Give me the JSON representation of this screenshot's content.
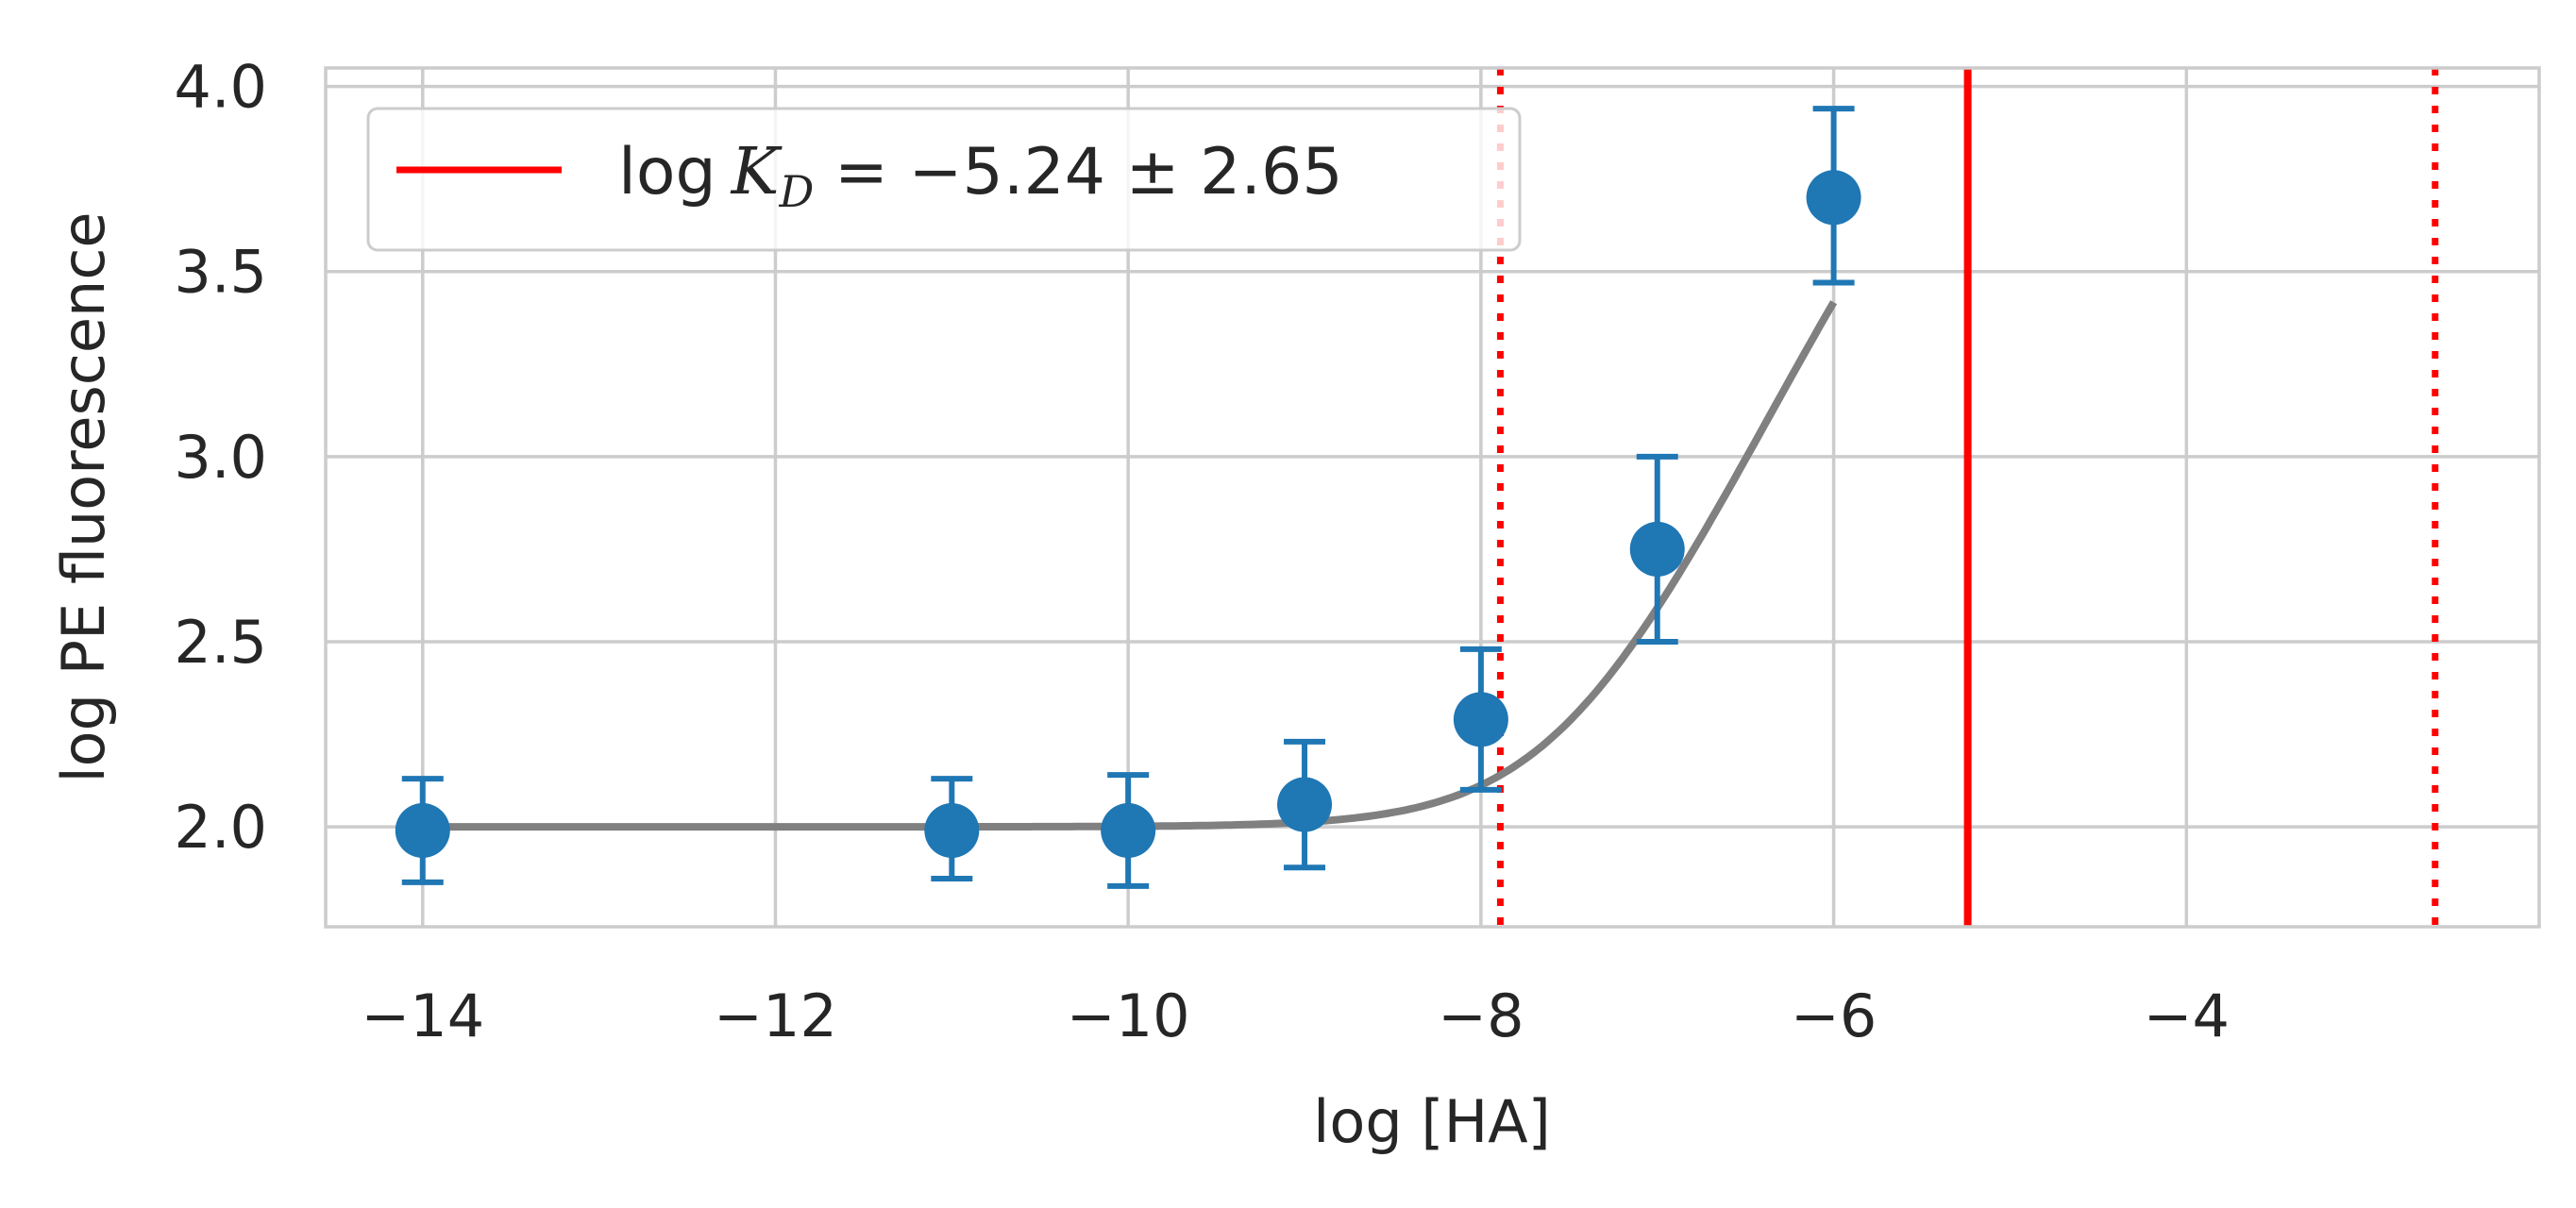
{
  "chart_data": {
    "type": "scatter",
    "xlabel": "log [HA]",
    "ylabel": "log PE fluorescence",
    "xlim": [
      -14.55,
      -2.0
    ],
    "ylim": [
      1.73,
      4.05
    ],
    "xticks": [
      -14,
      -12,
      -10,
      -8,
      -6,
      -4
    ],
    "xtick_labels": [
      "−14",
      "−12",
      "−10",
      "−8",
      "−6",
      "−4"
    ],
    "yticks": [
      2.0,
      2.5,
      3.0,
      3.5,
      4.0
    ],
    "ytick_labels": [
      "2.0",
      "2.5",
      "3.0",
      "3.5",
      "4.0"
    ],
    "grid": true,
    "points": {
      "x": [
        -14,
        -11,
        -10,
        -9,
        -8,
        -7,
        -6
      ],
      "y": [
        1.99,
        1.99,
        1.99,
        2.06,
        2.29,
        2.75,
        3.7
      ],
      "err_low": [
        1.85,
        1.86,
        1.84,
        1.89,
        2.1,
        2.5,
        3.47
      ],
      "err_high": [
        2.13,
        2.13,
        2.14,
        2.23,
        2.48,
        3.0,
        3.94
      ],
      "color": "#1f77b4"
    },
    "fit_curve": {
      "color": "#808080",
      "x_range": [
        -14,
        -6
      ],
      "baseline": 2.0,
      "amplitude": 2.23,
      "log_kd": -5.24
    },
    "kd_line": {
      "value": -5.24,
      "lower": -7.89,
      "upper": -2.59,
      "color": "#ff0000"
    },
    "legend": {
      "position": "upper-left",
      "prefix": "log",
      "symbol": "K",
      "subscript": "D",
      "rest": " = −5.24 ± 2.65"
    }
  }
}
